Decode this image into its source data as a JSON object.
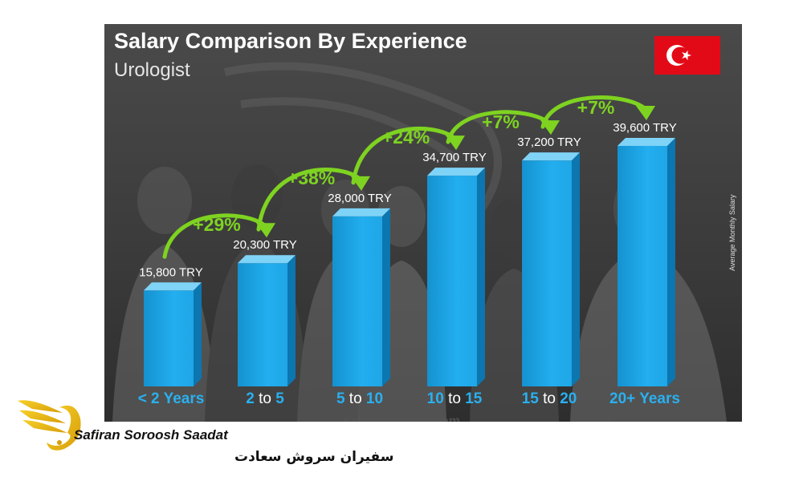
{
  "chart_data": {
    "type": "bar",
    "title": "Salary Comparison By Experience",
    "subtitle": "Urologist",
    "ylabel": "Average Monthly Salary",
    "categories": [
      {
        "lead": "< 2 Years",
        "mid": "",
        "tail": ""
      },
      {
        "lead": "2",
        "mid": " to ",
        "tail": "5"
      },
      {
        "lead": "5",
        "mid": " to ",
        "tail": "10"
      },
      {
        "lead": "10",
        "mid": " to ",
        "tail": "15"
      },
      {
        "lead": "15",
        "mid": " to ",
        "tail": "20"
      },
      {
        "lead": "20+ Years",
        "mid": "",
        "tail": ""
      }
    ],
    "values": [
      15800,
      20300,
      28000,
      34700,
      37200,
      39600
    ],
    "value_labels": [
      "15,800 TRY",
      "20,300 TRY",
      "28,000 TRY",
      "34,700 TRY",
      "37,200 TRY",
      "39,600 TRY"
    ],
    "increase_labels": [
      "+29%",
      "+38%",
      "+24%",
      "+7%",
      "+7%"
    ],
    "ylim": [
      0,
      45000
    ],
    "grid": false,
    "colors": {
      "bar": "#1aa3e0",
      "bar_top": "#7fd3f7",
      "bar_side": "#0b76b0",
      "category_lead": "#2ab0ef",
      "category_mid": "#ffffff",
      "increase": "#7ed321",
      "background": "#3a3a3a"
    }
  },
  "watermark": "salaryexplorer.com",
  "flag_icon": "turkey-flag-icon",
  "brand": {
    "name_latin": "Safiran Soroosh Saadat",
    "name_persian": "سفیران سروش سعادت",
    "logo_icon": "winged-swan-logo-icon",
    "color": "#e8b810"
  }
}
